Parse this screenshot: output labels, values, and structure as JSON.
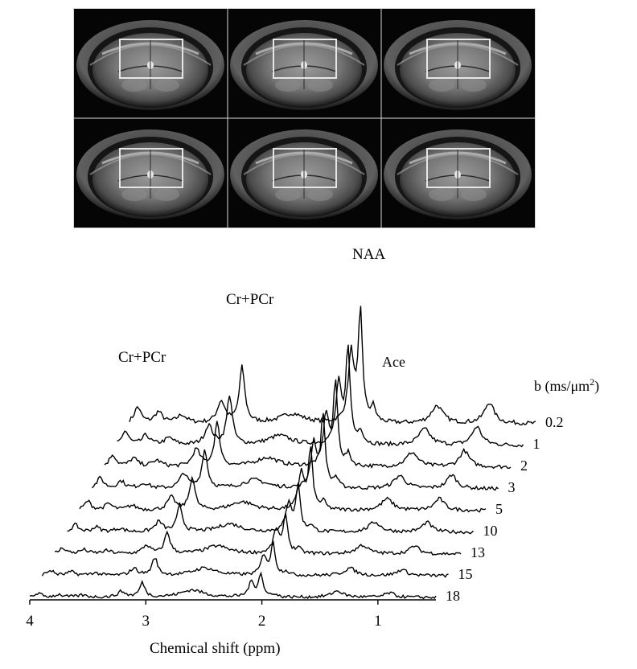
{
  "figure": {
    "mri_grid": {
      "rows": 2,
      "cols": 3
    },
    "peak_labels": {
      "naa": "NAA",
      "ace": "Ace",
      "crpcr_high": "Cr+PCr",
      "crpcr_low": "Cr+PCr"
    },
    "b_axis": {
      "title": "b (ms/μm",
      "title_sup": "2",
      "title_end": ")",
      "values": [
        "0.2",
        "1",
        "2",
        "3",
        "5",
        "10",
        "13",
        "15",
        "18"
      ]
    },
    "x_axis": {
      "title": "Chemical shift (ppm)",
      "ticks": [
        "4",
        "3",
        "2",
        "1"
      ],
      "range_ppm": [
        4.0,
        0.5
      ],
      "reversed": true
    },
    "colors": {
      "trace": "#000000",
      "mri_background": "#050505",
      "roi_box": "#e6e6e6"
    }
  },
  "chart_data": {
    "type": "line",
    "title": "",
    "xlabel": "Chemical shift (ppm)",
    "ylabel": "",
    "x_reversed": true,
    "xlim": [
      4.0,
      0.5
    ],
    "series_label_title": "b (ms/μm2)",
    "series": [
      {
        "name": "0.2",
        "b": 0.2,
        "peaks": [
          {
            "ppm": 2.01,
            "label": "NAA",
            "rel": 1.0
          },
          {
            "ppm": 1.92,
            "label": "Ace",
            "rel": 0.18
          },
          {
            "ppm": 3.03,
            "label": "Cr+PCr",
            "rel": 0.6
          },
          {
            "ppm": 3.93,
            "label": "Cr+PCr",
            "rel": 0.25
          }
        ]
      },
      {
        "name": "1",
        "b": 1,
        "peaks": [
          {
            "ppm": 2.01,
            "rel": 0.9
          },
          {
            "ppm": 3.03,
            "rel": 0.55
          },
          {
            "ppm": 3.93,
            "rel": 0.22
          }
        ]
      },
      {
        "name": "2",
        "b": 2,
        "peaks": [
          {
            "ppm": 2.01,
            "rel": 0.8
          },
          {
            "ppm": 3.03,
            "rel": 0.5
          },
          {
            "ppm": 3.93,
            "rel": 0.2
          }
        ]
      },
      {
        "name": "3",
        "b": 3,
        "peaks": [
          {
            "ppm": 2.01,
            "rel": 0.72
          },
          {
            "ppm": 3.03,
            "rel": 0.45
          },
          {
            "ppm": 3.93,
            "rel": 0.18
          }
        ]
      },
      {
        "name": "5",
        "b": 5,
        "peaks": [
          {
            "ppm": 2.01,
            "rel": 0.62
          },
          {
            "ppm": 3.03,
            "rel": 0.4
          },
          {
            "ppm": 3.93,
            "rel": 0.16
          }
        ]
      },
      {
        "name": "10",
        "b": 10,
        "peaks": [
          {
            "ppm": 2.01,
            "rel": 0.5
          },
          {
            "ppm": 3.03,
            "rel": 0.33
          },
          {
            "ppm": 3.93,
            "rel": 0.13
          }
        ]
      },
      {
        "name": "13",
        "b": 13,
        "peaks": [
          {
            "ppm": 2.01,
            "rel": 0.42
          },
          {
            "ppm": 3.03,
            "rel": 0.28
          },
          {
            "ppm": 3.93,
            "rel": 0.11
          }
        ]
      },
      {
        "name": "15",
        "b": 15,
        "peaks": [
          {
            "ppm": 2.01,
            "rel": 0.36
          },
          {
            "ppm": 3.03,
            "rel": 0.24
          },
          {
            "ppm": 3.93,
            "rel": 0.1
          }
        ]
      },
      {
        "name": "18",
        "b": 18,
        "peaks": [
          {
            "ppm": 2.01,
            "rel": 0.28
          },
          {
            "ppm": 3.03,
            "rel": 0.2
          },
          {
            "ppm": 3.93,
            "rel": 0.08
          }
        ]
      }
    ]
  }
}
